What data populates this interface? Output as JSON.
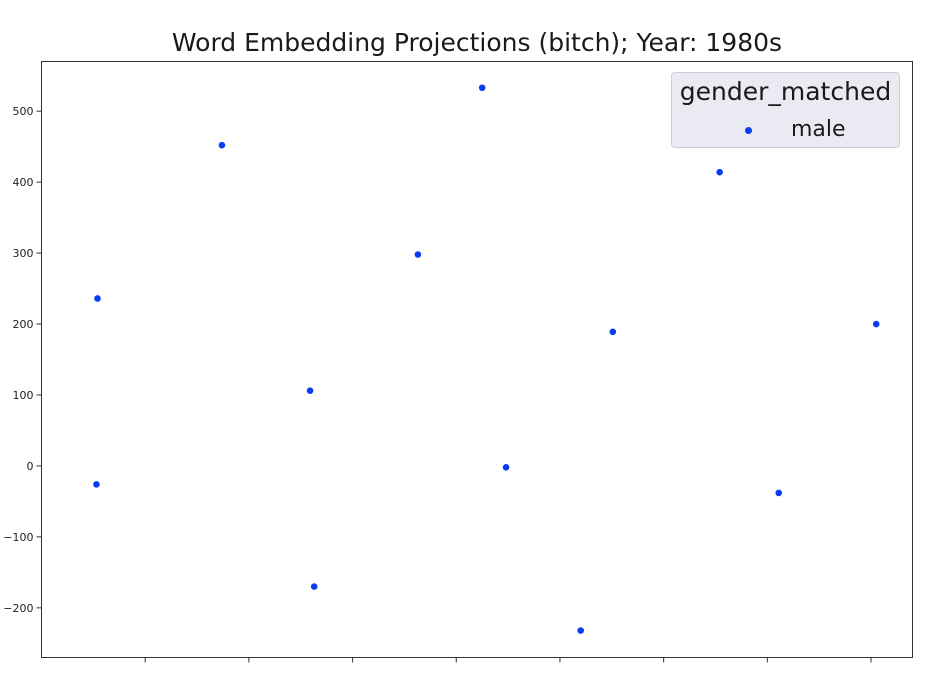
{
  "chart_data": {
    "type": "scatter",
    "title": "Word Embedding Projections (bitch); Year: 1980s",
    "xlabel": "",
    "ylabel": "",
    "x": [
      -1.46,
      -1.47,
      -0.26,
      0.59,
      0.63,
      1.63,
      2.25,
      2.48,
      3.2,
      3.51,
      4.54,
      5.11,
      6.05
    ],
    "y": [
      236,
      -26,
      452,
      106,
      -170,
      298,
      533,
      -2,
      -232,
      189,
      414,
      -38,
      200
    ],
    "xlim": [
      -2.0,
      6.4
    ],
    "ylim": [
      -270,
      570
    ],
    "xticks": [
      -1,
      0,
      1,
      2,
      3,
      4,
      5,
      6
    ],
    "yticks": [
      -200,
      -100,
      0,
      100,
      200,
      300,
      400,
      500
    ],
    "ytick_labels": [
      "−200",
      "−100",
      "0",
      "100",
      "200",
      "300",
      "400",
      "500"
    ],
    "xtick_labels_visible": false,
    "grid": false,
    "point_color": "#0a3cf0",
    "legend": {
      "title": "gender_matched",
      "entries": [
        {
          "label": "male",
          "color": "#0a3cf0"
        }
      ],
      "placement": "top-right"
    }
  }
}
